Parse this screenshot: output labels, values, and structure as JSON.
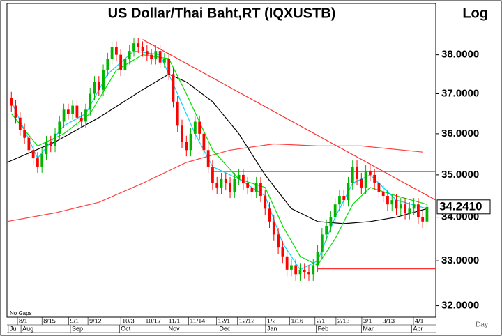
{
  "chart_data": {
    "type": "candlestick",
    "title": "US  Dollar/Thai  Baht,RT  (IQXUSTB)",
    "scale_label": "Log",
    "note": "No  Gaps",
    "x_unit": "Day",
    "log": true,
    "up_color": "#00b400",
    "down_color": "#ff0000",
    "open": [
      36.9,
      36.7,
      36.4,
      36.1,
      35.9,
      35.6,
      35.4,
      35.2,
      35.5,
      35.8,
      35.7,
      36.0,
      36.3,
      36.6,
      36.5,
      36.7,
      36.4,
      36.3,
      36.6,
      37.0,
      37.3,
      37.1,
      37.6,
      37.9,
      38.2,
      38.0,
      37.6,
      37.9,
      38.1,
      38.3,
      38.2,
      38.1,
      38.0,
      37.9,
      38.1,
      37.8,
      37.9,
      37.5,
      36.8,
      36.2,
      35.8,
      35.6,
      36.0,
      36.3,
      36.0,
      35.6,
      35.2,
      34.8,
      34.7,
      34.9,
      34.8,
      34.6,
      34.9,
      35.0,
      34.8,
      34.7,
      34.6,
      34.8,
      34.5,
      34.2,
      33.9,
      33.6,
      33.3,
      33.1,
      32.8,
      32.9,
      32.7,
      32.8,
      32.75,
      32.7,
      32.9,
      33.2,
      33.6,
      33.8,
      34.0,
      34.3,
      34.5,
      34.4,
      34.8,
      35.2,
      34.9,
      34.7,
      35.1,
      35.0,
      34.8,
      34.6,
      34.5,
      34.3,
      34.4,
      34.2,
      34.3,
      34.1,
      34.2,
      34.3,
      34.0,
      33.9
    ],
    "high": [
      37.05,
      36.85,
      36.55,
      36.25,
      36.05,
      35.75,
      35.55,
      35.65,
      35.95,
      35.95,
      36.15,
      36.45,
      36.75,
      36.75,
      36.85,
      36.85,
      36.55,
      36.75,
      37.15,
      37.45,
      37.45,
      37.75,
      38.05,
      38.35,
      38.35,
      38.15,
      38.05,
      38.25,
      38.45,
      38.45,
      38.35,
      38.25,
      38.15,
      38.25,
      38.25,
      38.05,
      38.05,
      37.65,
      36.95,
      36.35,
      35.95,
      36.15,
      36.45,
      36.45,
      36.15,
      35.75,
      35.35,
      34.95,
      35.05,
      35.05,
      34.95,
      35.05,
      35.15,
      35.15,
      34.95,
      34.85,
      34.95,
      34.95,
      34.65,
      34.35,
      34.05,
      33.75,
      33.45,
      33.25,
      33.05,
      33.05,
      32.95,
      32.95,
      32.9,
      33.05,
      33.35,
      33.75,
      33.95,
      34.15,
      34.45,
      34.65,
      34.65,
      34.95,
      35.35,
      35.35,
      35.05,
      35.25,
      35.25,
      35.15,
      34.95,
      34.75,
      34.65,
      34.55,
      34.55,
      34.45,
      34.45,
      34.35,
      34.45,
      34.45,
      34.15,
      34.39
    ],
    "low": [
      36.55,
      36.25,
      35.95,
      35.75,
      35.45,
      35.25,
      35.05,
      35.05,
      35.35,
      35.55,
      35.55,
      35.85,
      36.15,
      36.35,
      36.35,
      36.25,
      36.15,
      36.15,
      36.45,
      36.85,
      36.95,
      36.95,
      37.45,
      37.75,
      37.85,
      37.45,
      37.45,
      37.75,
      37.95,
      38.05,
      37.95,
      37.85,
      37.75,
      37.75,
      37.65,
      37.65,
      37.35,
      36.65,
      36.05,
      35.65,
      35.45,
      35.45,
      35.85,
      35.85,
      35.45,
      35.05,
      34.65,
      34.55,
      34.55,
      34.65,
      34.45,
      34.45,
      34.75,
      34.65,
      34.55,
      34.45,
      34.45,
      34.35,
      34.05,
      33.75,
      33.45,
      33.15,
      32.95,
      32.65,
      32.65,
      32.55,
      32.55,
      32.6,
      32.55,
      32.55,
      32.75,
      33.05,
      33.45,
      33.65,
      33.85,
      34.15,
      34.25,
      34.25,
      34.65,
      34.75,
      34.55,
      34.55,
      34.85,
      34.65,
      34.45,
      34.35,
      34.15,
      34.15,
      34.05,
      34.05,
      33.95,
      33.95,
      34.05,
      33.85,
      33.75,
      33.75
    ],
    "close": [
      36.7,
      36.4,
      36.1,
      35.9,
      35.6,
      35.4,
      35.2,
      35.5,
      35.8,
      35.7,
      36.0,
      36.3,
      36.6,
      36.5,
      36.7,
      36.4,
      36.3,
      36.6,
      37.0,
      37.3,
      37.1,
      37.6,
      37.9,
      38.2,
      38.0,
      37.6,
      37.9,
      38.1,
      38.3,
      38.2,
      38.1,
      38.0,
      37.9,
      38.1,
      37.8,
      37.9,
      37.5,
      36.8,
      36.2,
      35.8,
      35.6,
      36.0,
      36.3,
      36.0,
      35.6,
      35.2,
      34.8,
      34.7,
      34.9,
      34.8,
      34.6,
      34.9,
      35.0,
      34.8,
      34.7,
      34.6,
      34.8,
      34.5,
      34.2,
      33.9,
      33.6,
      33.3,
      33.1,
      32.8,
      32.9,
      32.7,
      32.8,
      32.75,
      32.7,
      32.9,
      33.2,
      33.6,
      33.8,
      34.0,
      34.3,
      34.5,
      34.4,
      34.8,
      35.2,
      34.9,
      34.7,
      35.1,
      35.0,
      34.8,
      34.6,
      34.5,
      34.3,
      34.4,
      34.2,
      34.3,
      34.1,
      34.2,
      34.3,
      34.0,
      33.9,
      34.241
    ],
    "last_price_label": "34.2410",
    "xlim": [
      -1,
      97
    ],
    "ylim": [
      31.75,
      39.36
    ],
    "yticks": [
      {
        "value": 32,
        "label": "32.0000"
      },
      {
        "value": 33,
        "label": "33.0000"
      },
      {
        "value": 34,
        "label": "34.0000"
      },
      {
        "value": 35,
        "label": "35.0000"
      },
      {
        "value": 36,
        "label": "36.0000"
      },
      {
        "value": 37,
        "label": "37.0000"
      },
      {
        "value": 38,
        "label": "38.0000"
      }
    ],
    "xticks": [
      {
        "value": 1.4,
        "label": "8/1"
      },
      {
        "value": 7.0,
        "label": "8/15"
      },
      {
        "value": 13.1,
        "label": "9/1"
      },
      {
        "value": 17.5,
        "label": "9/12"
      },
      {
        "value": 25.0,
        "label": "10/3"
      },
      {
        "value": 30.3,
        "label": "10/17"
      },
      {
        "value": 35.6,
        "label": "11/1"
      },
      {
        "value": 40.5,
        "label": "11/14"
      },
      {
        "value": 46.9,
        "label": "12/1"
      },
      {
        "value": 51.7,
        "label": "12/12"
      },
      {
        "value": 58.1,
        "label": "1/2"
      },
      {
        "value": 63.6,
        "label": "1/16"
      },
      {
        "value": 69.4,
        "label": "2/1"
      },
      {
        "value": 74.2,
        "label": "2/13"
      },
      {
        "value": 80.1,
        "label": "3/1"
      },
      {
        "value": 84.5,
        "label": "3/13"
      },
      {
        "value": 91.9,
        "label": "4/1"
      }
    ],
    "month_ticks": [
      {
        "value": -0.7,
        "label": "Jul"
      },
      {
        "value": 2.2,
        "label": "Aug"
      },
      {
        "value": 13.5,
        "label": "Sep"
      },
      {
        "value": 24.7,
        "label": "Oct"
      },
      {
        "value": 35.6,
        "label": "Nov"
      },
      {
        "value": 47.2,
        "label": "Dec"
      },
      {
        "value": 58.1,
        "label": "Jan"
      },
      {
        "value": 69.7,
        "label": "Feb"
      },
      {
        "value": 80.0,
        "label": "Mar"
      },
      {
        "value": 91.5,
        "label": "Apr"
      }
    ],
    "overlays": [
      {
        "color": "#000000",
        "x": [
          -1,
          10,
          20,
          30,
          36,
          40,
          46,
          52,
          58,
          64,
          70,
          76,
          82,
          88,
          95
        ],
        "values": [
          35.3,
          35.8,
          36.4,
          37.1,
          37.5,
          37.3,
          36.8,
          36.0,
          35.0,
          34.2,
          33.9,
          33.85,
          33.9,
          34.0,
          34.2
        ]
      },
      {
        "color": "#ff4040",
        "x": [
          -1,
          10,
          20,
          30,
          40,
          50,
          60,
          70,
          80,
          94
        ],
        "values": [
          33.9,
          34.1,
          34.35,
          34.8,
          35.3,
          35.6,
          35.75,
          35.7,
          35.7,
          35.55
        ]
      },
      {
        "color": "#00d8ff",
        "x": [
          0,
          6,
          12,
          17,
          22,
          28,
          34,
          38,
          42,
          46,
          52,
          58,
          62,
          66,
          70,
          74,
          78,
          82,
          88,
          95
        ],
        "values": [
          36.8,
          35.4,
          36.2,
          36.5,
          37.5,
          38.1,
          38.0,
          37.0,
          36.0,
          35.2,
          34.9,
          34.5,
          33.4,
          32.8,
          33.0,
          34.0,
          34.8,
          35.0,
          34.4,
          34.2
        ]
      },
      {
        "color": "#00e000",
        "x": [
          0,
          6,
          12,
          18,
          24,
          30,
          36,
          40,
          46,
          52,
          58,
          62,
          66,
          70,
          74,
          78,
          82,
          88,
          95
        ],
        "values": [
          36.5,
          35.7,
          36.0,
          36.5,
          37.6,
          38.0,
          37.9,
          37.0,
          35.6,
          34.9,
          34.7,
          33.8,
          33.1,
          32.9,
          33.5,
          34.3,
          34.7,
          34.5,
          34.3
        ]
      }
    ],
    "trendlines": [
      {
        "color": "#ff3030",
        "x": [
          30,
          97
        ],
        "values": [
          38.4,
          34.4
        ]
      },
      {
        "color": "#ff3030",
        "x": [
          46,
          97
        ],
        "values": [
          35.08,
          35.08
        ]
      },
      {
        "color": "#ff3030",
        "x": [
          70,
          97
        ],
        "values": [
          32.82,
          32.82
        ]
      }
    ]
  }
}
